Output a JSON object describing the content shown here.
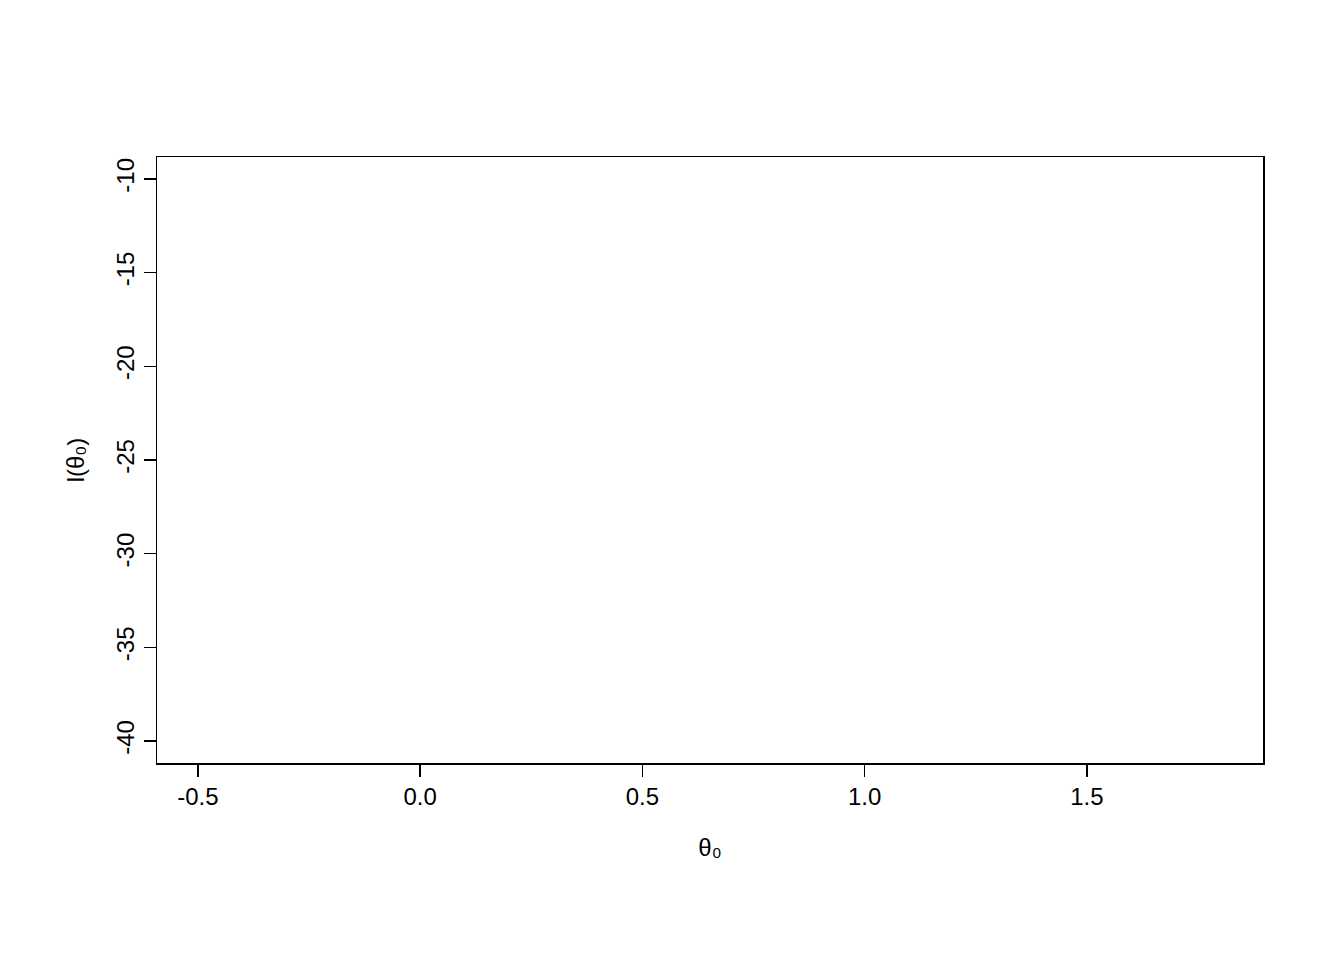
{
  "chart_data": {
    "type": "scatter",
    "x_label": "θ₀",
    "y_label": "l(θ₀)",
    "x": [],
    "values": [],
    "xlim": [
      -0.592,
      1.896
    ],
    "xticks": [
      {
        "value": -0.5,
        "label": "-0.5"
      },
      {
        "value": 0,
        "label": "0.0"
      },
      {
        "value": 0.5,
        "label": "0.5"
      },
      {
        "value": 1,
        "label": "1.0"
      },
      {
        "value": 1.5,
        "label": "1.5"
      }
    ],
    "ylim": [
      -41.17,
      -8.83
    ],
    "yticks": [
      -40,
      -35,
      -30,
      -25,
      -20,
      -15,
      -10
    ],
    "grid": false
  }
}
